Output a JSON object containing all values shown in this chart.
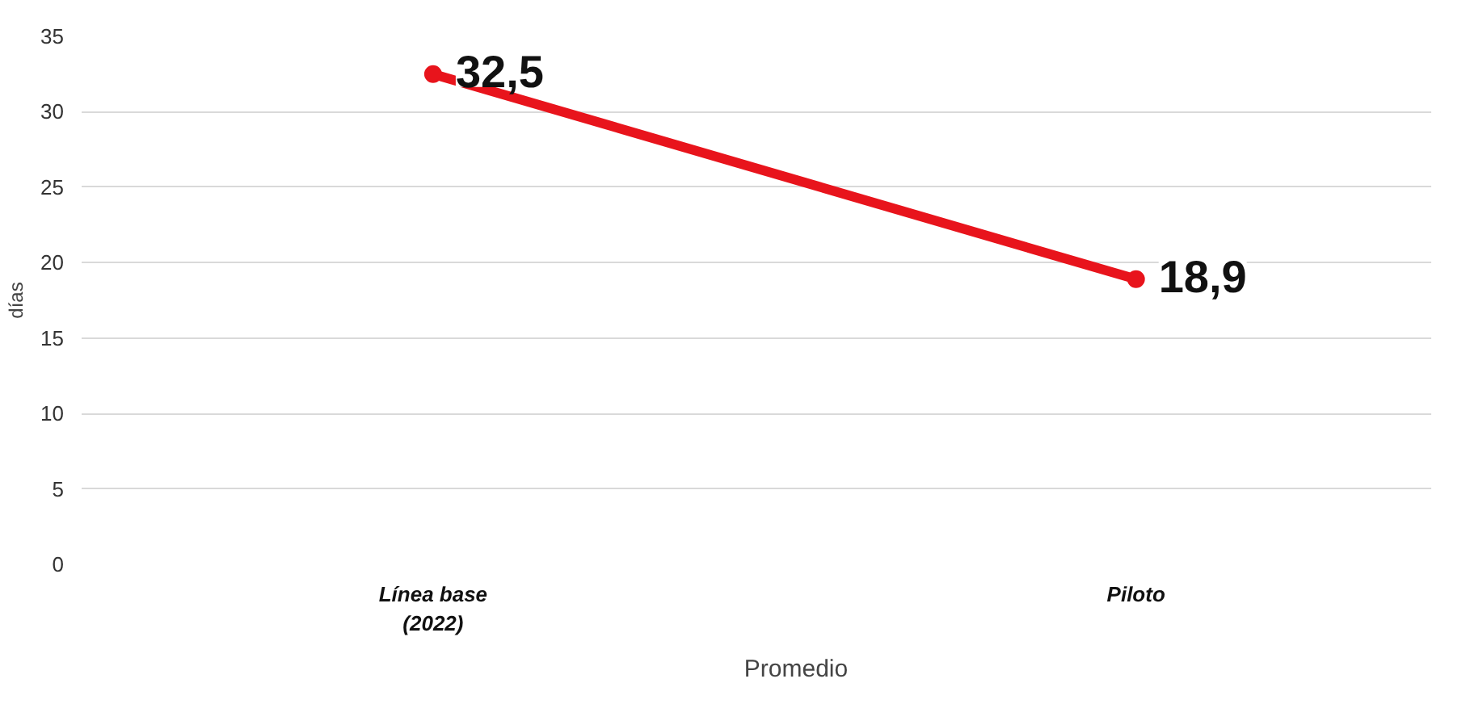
{
  "chart_data": {
    "type": "line",
    "ylabel": "días",
    "categories": [
      "Línea base\n(2022)",
      "Piloto"
    ],
    "series": [
      {
        "name": "Promedio",
        "color": "#e8141c",
        "values": [
          32.5,
          18.9
        ],
        "value_labels": [
          "32,5",
          "18,9"
        ]
      }
    ],
    "ylim": [
      0,
      35
    ],
    "yticks": [
      0,
      5,
      10,
      15,
      20,
      25,
      30,
      35
    ],
    "grid": "y",
    "legend": "bottom",
    "marker": "circle",
    "line_style": "solid"
  }
}
